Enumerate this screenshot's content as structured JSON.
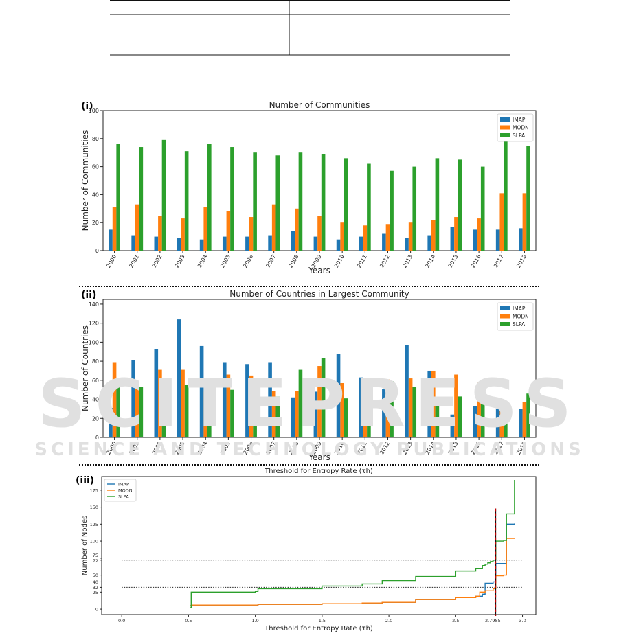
{
  "watermark": {
    "big": "SCITEPRESS",
    "small": "SCIENCE AND TECHNOLOGY PUBLICATIONS"
  },
  "chart_data": [
    {
      "panel": "(i)",
      "type": "bar",
      "title": "Number of Communities",
      "xlabel": "Years",
      "ylabel": "Number of Communities",
      "ylim": [
        0,
        100
      ],
      "yticks": [
        0,
        20,
        40,
        60,
        80,
        100
      ],
      "legend": "top-right",
      "categories": [
        "2000",
        "2001",
        "2002",
        "2003",
        "2004",
        "2005",
        "2006",
        "2007",
        "2008",
        "2009",
        "2010",
        "2011",
        "2012",
        "2013",
        "2014",
        "2015",
        "2016",
        "2017",
        "2018"
      ],
      "series": [
        {
          "name": "IMAP",
          "color": "#1f77b4",
          "values": [
            15,
            11,
            10,
            9,
            8,
            10,
            10,
            11,
            14,
            10,
            8,
            10,
            12,
            9,
            11,
            17,
            15,
            15,
            16
          ]
        },
        {
          "name": "MODN",
          "color": "#ff7f0e",
          "values": [
            31,
            33,
            25,
            23,
            31,
            28,
            24,
            33,
            30,
            25,
            20,
            18,
            19,
            20,
            22,
            24,
            23,
            41,
            41
          ]
        },
        {
          "name": "SLPA",
          "color": "#2ca02c",
          "values": [
            76,
            74,
            79,
            71,
            76,
            74,
            70,
            68,
            70,
            69,
            66,
            62,
            57,
            60,
            66,
            65,
            60,
            79,
            75
          ]
        }
      ]
    },
    {
      "panel": "(ii)",
      "type": "bar",
      "title": "Number of Countries in Largest Community",
      "xlabel": "Years",
      "ylabel": "Number of Countries",
      "ylim": [
        0,
        145
      ],
      "yticks": [
        0,
        20,
        40,
        60,
        80,
        100,
        120,
        140
      ],
      "legend": "top-right",
      "categories": [
        "2000",
        "2001",
        "2002",
        "2003",
        "2004",
        "2005",
        "2006",
        "2007",
        "2008",
        "2009",
        "2010",
        "2011",
        "2012",
        "2013",
        "2014",
        "2015",
        "2016",
        "2017",
        "2018"
      ],
      "series": [
        {
          "name": "IMAP",
          "color": "#1f77b4",
          "values": [
            31,
            81,
            93,
            124,
            96,
            79,
            77,
            79,
            42,
            48,
            88,
            63,
            51,
            97,
            70,
            24,
            33,
            30,
            30
          ]
        },
        {
          "name": "MODN",
          "color": "#ff7f0e",
          "values": [
            79,
            52,
            71,
            71,
            48,
            66,
            65,
            49,
            49,
            75,
            57,
            59,
            61,
            62,
            70,
            66,
            58,
            39,
            37
          ]
        },
        {
          "name": "SLPA",
          "color": "#2ca02c",
          "values": [
            54,
            53,
            48,
            55,
            50,
            50,
            42,
            43,
            71,
            83,
            41,
            45,
            59,
            53,
            41,
            43,
            43,
            33,
            46
          ]
        }
      ]
    },
    {
      "panel": "(iii)",
      "type": "line",
      "title": "Threshold for Entropy Rate (τh)",
      "xlabel": "Threshold for Entropy Rate (τh)",
      "ylabel": "Number of Nodes",
      "xlim": [
        -0.15,
        3.1
      ],
      "ylim": [
        -8,
        195
      ],
      "xticks": [
        0.0,
        0.5,
        1.0,
        1.5,
        2.0,
        2.5,
        3.0
      ],
      "xtick_labels": [
        "0.0",
        "0.5",
        "1.0",
        "1.5",
        "2.0",
        "2.5",
        "3.0"
      ],
      "yticks": [
        0,
        25,
        32,
        40,
        50,
        72,
        75,
        100,
        125,
        150,
        175
      ],
      "legend": "top-left",
      "vertical_marker": {
        "x": 2.7985,
        "label": "2.7985",
        "color": "#c00000"
      },
      "horizontal_lines": [
        72,
        40,
        32
      ],
      "series": [
        {
          "name": "IMAP",
          "color": "#1f77b4",
          "x": [
            0.51,
            0.52,
            1.0,
            1.02,
            1.5,
            1.8,
            1.95,
            2.2,
            2.5,
            2.65,
            2.7,
            2.72,
            2.72,
            2.76,
            2.78,
            2.8,
            2.8,
            2.86,
            2.88,
            2.88,
            2.94
          ],
          "y": [
            5,
            6,
            6,
            7,
            8,
            9,
            10,
            14,
            17,
            19,
            22,
            25,
            38,
            38,
            40,
            40,
            67,
            67,
            67,
            125,
            126
          ]
        },
        {
          "name": "MODN",
          "color": "#ff7f0e",
          "x": [
            0.51,
            0.52,
            1.0,
            1.02,
            1.5,
            1.8,
            1.95,
            2.2,
            2.5,
            2.65,
            2.68,
            2.72,
            2.78,
            2.8,
            2.8,
            2.86,
            2.88,
            2.88,
            2.94
          ],
          "y": [
            5,
            6,
            6,
            7,
            8,
            9,
            10,
            14,
            17,
            19,
            25,
            27,
            30,
            31,
            49,
            50,
            51,
            104,
            105
          ]
        },
        {
          "name": "SLPA",
          "color": "#2ca02c",
          "x": [
            0.51,
            0.52,
            1.0,
            1.02,
            1.02,
            1.5,
            1.8,
            1.95,
            2.2,
            2.5,
            2.65,
            2.7,
            2.72,
            2.74,
            2.76,
            2.78,
            2.8,
            2.8,
            2.86,
            2.88,
            2.88,
            2.94,
            2.94
          ],
          "y": [
            2,
            25,
            26,
            27,
            30,
            34,
            37,
            42,
            48,
            56,
            60,
            64,
            66,
            68,
            70,
            72,
            73,
            100,
            101,
            102,
            140,
            142,
            190
          ]
        }
      ]
    }
  ]
}
